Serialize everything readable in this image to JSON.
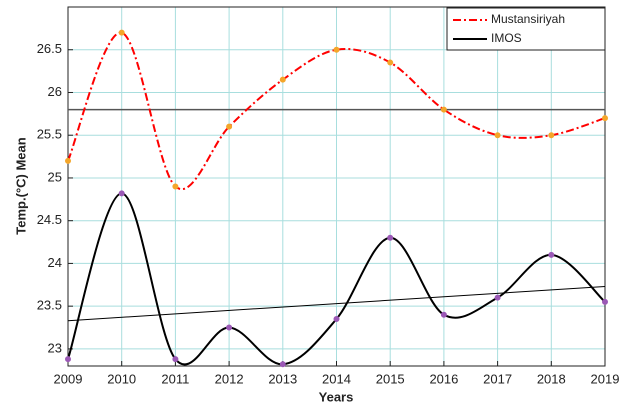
{
  "chart_data": {
    "type": "line",
    "xlabel": "Years",
    "ylabel": "Temp.(°C) Mean",
    "x": [
      2009,
      2010,
      2011,
      2012,
      2013,
      2014,
      2015,
      2016,
      2017,
      2018,
      2019
    ],
    "series": [
      {
        "name": "Mustansiriyah",
        "color": "#ff0000",
        "marker_color": "#f4a62a",
        "dash": "dashdot",
        "values": [
          25.2,
          26.7,
          24.9,
          25.6,
          26.15,
          26.5,
          26.35,
          25.8,
          25.5,
          25.5,
          25.7
        ]
      },
      {
        "name": "IMOS",
        "color": "#000000",
        "marker_color": "#9b59b6",
        "dash": "solid",
        "values": [
          22.88,
          24.82,
          22.88,
          23.25,
          22.82,
          23.35,
          24.3,
          23.4,
          23.6,
          24.1,
          23.55
        ]
      }
    ],
    "mean_line": {
      "value": 25.8,
      "color": "#555555"
    },
    "trend_line": {
      "values": [
        23.33,
        23.73
      ],
      "color": "#000000"
    },
    "xlim": [
      2009,
      2019
    ],
    "xticks": [
      2009,
      2010,
      2011,
      2012,
      2013,
      2014,
      2015,
      2016,
      2017,
      2018,
      2019
    ],
    "ylim": [
      22.8,
      27
    ],
    "yticks": [
      23,
      23.5,
      24,
      24.5,
      25,
      25.5,
      26,
      26.5
    ],
    "grid": true,
    "grid_color": "#a8dede",
    "legend": "upper right"
  }
}
